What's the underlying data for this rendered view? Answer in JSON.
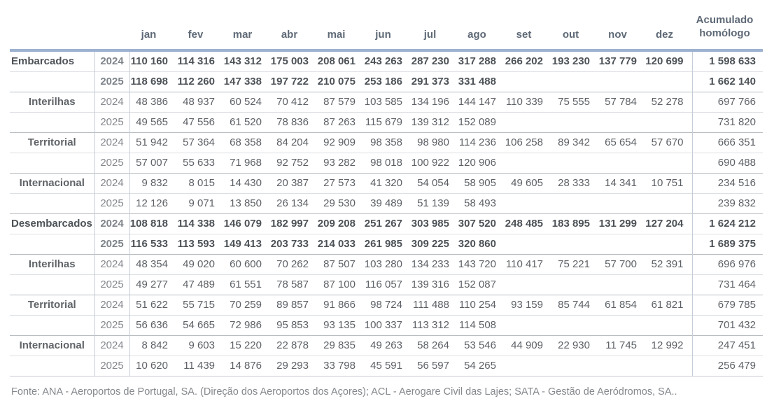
{
  "chart_data": {
    "type": "table",
    "months": [
      "jan",
      "fev",
      "mar",
      "abr",
      "mai",
      "jun",
      "jul",
      "ago",
      "set",
      "out",
      "nov",
      "dez"
    ],
    "accumulated_label": "Acumulado homólogo",
    "rows": [
      {
        "label": "Embarcados",
        "year": "2024",
        "emphasis": true,
        "values": [
          "110 160",
          "114 316",
          "143 312",
          "175 003",
          "208 061",
          "243 263",
          "287 230",
          "317 288",
          "266 202",
          "193 230",
          "137 779",
          "120 699"
        ],
        "accumulated": "1 598 633"
      },
      {
        "label": "",
        "year": "2025",
        "emphasis": true,
        "values": [
          "118 698",
          "112 260",
          "147 338",
          "197 722",
          "210 075",
          "253 186",
          "291 373",
          "331 488",
          "",
          "",
          "",
          ""
        ],
        "accumulated": "1 662 140"
      },
      {
        "label": "Interilhas",
        "year": "2024",
        "emphasis": false,
        "values": [
          "48 386",
          "48 937",
          "60 524",
          "70 412",
          "87 579",
          "103 585",
          "134 196",
          "144 147",
          "110 339",
          "75 555",
          "57 784",
          "52 278"
        ],
        "accumulated": "697 766"
      },
      {
        "label": "",
        "year": "2025",
        "emphasis": false,
        "values": [
          "49 565",
          "47 556",
          "61 520",
          "78 836",
          "87 263",
          "115 679",
          "139 312",
          "152 089",
          "",
          "",
          "",
          ""
        ],
        "accumulated": "731 820"
      },
      {
        "label": "Territorial",
        "year": "2024",
        "emphasis": false,
        "values": [
          "51 942",
          "57 364",
          "68 358",
          "84 204",
          "92 909",
          "98 358",
          "98 980",
          "114 236",
          "106 258",
          "89 342",
          "65 654",
          "57 670"
        ],
        "accumulated": "666 351"
      },
      {
        "label": "",
        "year": "2025",
        "emphasis": false,
        "values": [
          "57 007",
          "55 633",
          "71 968",
          "92 752",
          "93 282",
          "98 018",
          "100 922",
          "120 906",
          "",
          "",
          "",
          ""
        ],
        "accumulated": "690 488"
      },
      {
        "label": "Internacional",
        "year": "2024",
        "emphasis": false,
        "values": [
          "9 832",
          "8 015",
          "14 430",
          "20 387",
          "27 573",
          "41 320",
          "54 054",
          "58 905",
          "49 605",
          "28 333",
          "14 341",
          "10 751"
        ],
        "accumulated": "234 516"
      },
      {
        "label": "",
        "year": "2025",
        "emphasis": false,
        "values": [
          "12 126",
          "9 071",
          "13 850",
          "26 134",
          "29 530",
          "39 489",
          "51 139",
          "58 493",
          "",
          "",
          "",
          ""
        ],
        "accumulated": "239 832"
      },
      {
        "label": "Desembarcados",
        "year": "2024",
        "emphasis": true,
        "values": [
          "108 818",
          "114 338",
          "146 079",
          "182 997",
          "209 208",
          "251 267",
          "303 985",
          "307 520",
          "248 485",
          "183 895",
          "131 299",
          "127 204"
        ],
        "accumulated": "1 624 212"
      },
      {
        "label": "",
        "year": "2025",
        "emphasis": true,
        "values": [
          "116 533",
          "113 593",
          "149 413",
          "203 733",
          "214 033",
          "261 985",
          "309 225",
          "320 860",
          "",
          "",
          "",
          ""
        ],
        "accumulated": "1 689 375"
      },
      {
        "label": "Interilhas",
        "year": "2024",
        "emphasis": false,
        "values": [
          "48 354",
          "49 020",
          "60 600",
          "70 262",
          "87 507",
          "103 280",
          "134 233",
          "143 720",
          "110 417",
          "75 221",
          "57 700",
          "52 391"
        ],
        "accumulated": "696 976"
      },
      {
        "label": "",
        "year": "2025",
        "emphasis": false,
        "values": [
          "49 277",
          "47 489",
          "61 551",
          "78 587",
          "87 100",
          "116 057",
          "139 316",
          "152 087",
          "",
          "",
          "",
          ""
        ],
        "accumulated": "731 464"
      },
      {
        "label": "Territorial",
        "year": "2024",
        "emphasis": false,
        "values": [
          "51 622",
          "55 715",
          "70 259",
          "89 857",
          "91 866",
          "98 724",
          "111 488",
          "110 254",
          "93 159",
          "85 744",
          "61 854",
          "61 821"
        ],
        "accumulated": "679 785"
      },
      {
        "label": "",
        "year": "2025",
        "emphasis": false,
        "values": [
          "56 636",
          "54 665",
          "72 986",
          "95 853",
          "93 135",
          "100 337",
          "113 312",
          "114 508",
          "",
          "",
          "",
          ""
        ],
        "accumulated": "701 432"
      },
      {
        "label": "Internacional",
        "year": "2024",
        "emphasis": false,
        "values": [
          "8 842",
          "9 603",
          "15 220",
          "22 878",
          "29 835",
          "49 263",
          "58 264",
          "53 546",
          "44 909",
          "22 930",
          "11 745",
          "12 992"
        ],
        "accumulated": "247 451"
      },
      {
        "label": "",
        "year": "2025",
        "emphasis": false,
        "values": [
          "10 620",
          "11 439",
          "14 876",
          "29 293",
          "33 798",
          "45 591",
          "56 597",
          "54 265",
          "",
          "",
          "",
          ""
        ],
        "accumulated": "256 479"
      }
    ]
  },
  "header": {
    "accumulated_line1": "Acumulado",
    "accumulated_line2": "homólogo"
  },
  "footer": {
    "source": "Fonte: ANA - Aeroportos de Portugal, SA. (Direção dos Aeroportos dos Açores); ACL - Aerogare Civil das Lajes; SATA - Gestão de Aeródromos, SA.."
  },
  "colors": {
    "accent_rule": "#9db1d0",
    "header_text": "#5e6976",
    "emphasis_text": "#4d5257",
    "body_text": "#5d6166",
    "year_text": "#85888d",
    "row_border_light": "#dcdfe3",
    "row_border_dark": "#b8bcc1",
    "column_border": "#c5cdd9"
  }
}
